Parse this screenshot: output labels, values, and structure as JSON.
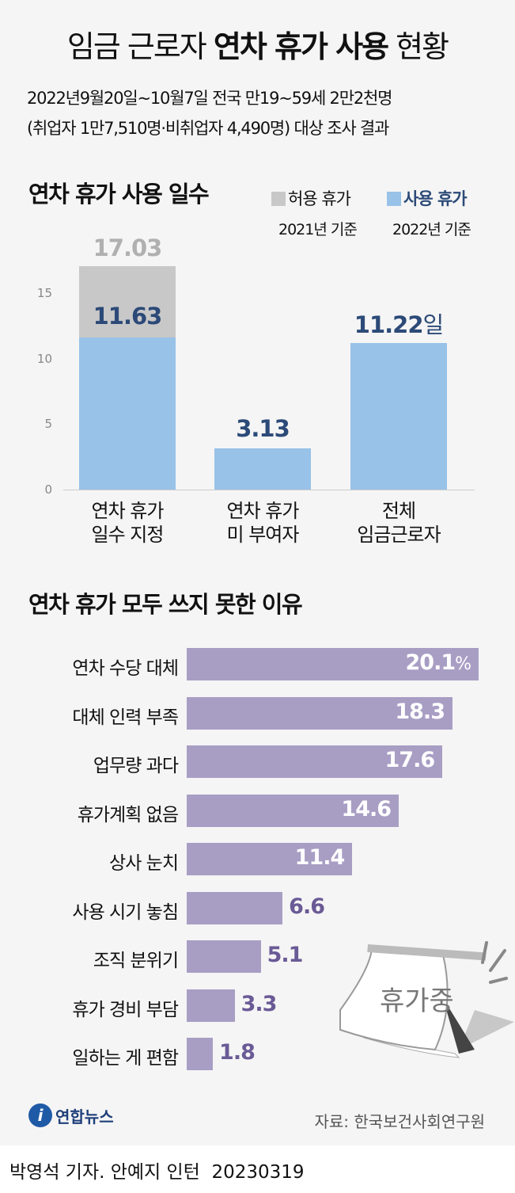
{
  "header": {
    "title_light1": "임금 근로자 ",
    "title_bold": "연차 휴가 사용",
    "title_light2": " 현황",
    "subtitle1": "2022년9월20일~10월7일 전국 만19~59세 2만2천명",
    "subtitle2": "(취업자 1만7,510명·비취업자 4,490명) 대상 조사 결과"
  },
  "colors": {
    "allowed": "#c8c8c8",
    "used": "#98c2e8",
    "used_text": "#2c4a78",
    "reason_bar": "#a89ec4",
    "reason_text": "#6a5a96",
    "background": "#f5f5f5"
  },
  "chart_data": [
    {
      "type": "bar",
      "title": "연차 휴가 사용 일수",
      "categories": [
        "연차 휴가\n일수 지정",
        "연차 휴가\n미 부여자",
        "전체\n임금근로자"
      ],
      "series": [
        {
          "name": "허용 휴가",
          "note": "2021년 기준",
          "values": [
            17.03,
            null,
            null
          ]
        },
        {
          "name": "사용 휴가",
          "note": "2022년 기준",
          "values": [
            11.63,
            3.13,
            11.22
          ]
        }
      ],
      "labels": [
        "17.03",
        "11.63",
        "3.13",
        "11.22"
      ],
      "unit": "일",
      "yticks": [
        "0",
        "5",
        "10",
        "15"
      ],
      "ylim": [
        0,
        17.5
      ],
      "grid": false
    },
    {
      "type": "bar",
      "orientation": "horizontal",
      "title": "연차 휴가 모두 쓰지 못한 이유",
      "categories": [
        "연차 수당 대체",
        "대체 인력 부족",
        "업무량 과다",
        "휴가계획 없음",
        "상사 눈치",
        "사용 시기 놓침",
        "조직 분위기",
        "휴가 경비 부담",
        "일하는 게 편함"
      ],
      "values": [
        20.1,
        18.3,
        17.6,
        14.6,
        11.4,
        6.6,
        5.1,
        3.3,
        1.8
      ],
      "labels": [
        "20.1",
        "18.3",
        "17.6",
        "14.6",
        "11.4",
        "6.6",
        "5.1",
        "3.3",
        "1.8"
      ],
      "unit": "%",
      "xlim": [
        0,
        20.1
      ]
    }
  ],
  "illustration": {
    "text": "휴가중"
  },
  "footer": {
    "logo": "연합뉴스",
    "source": "자료: 한국보건사회연구원",
    "credit": "박영석 기자. 안예지 인턴",
    "date": "20230319"
  }
}
